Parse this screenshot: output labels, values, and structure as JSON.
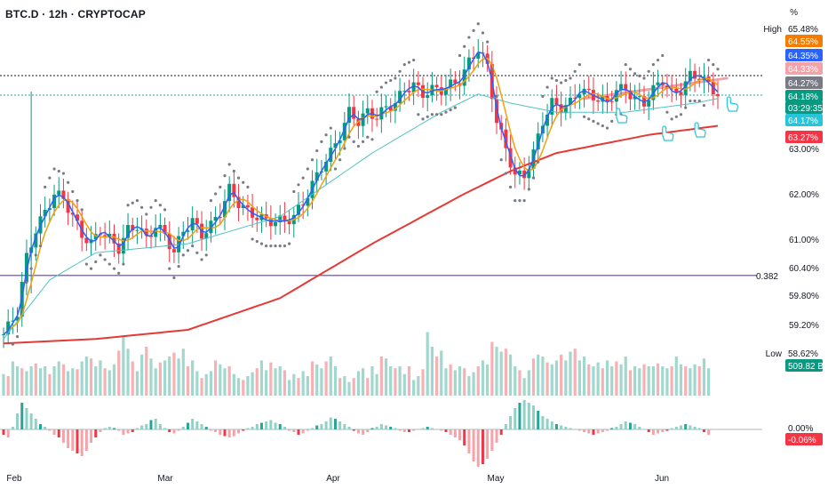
{
  "header": {
    "title": "BTC.D · 12h · CRYPTOCAP",
    "percent_label": "%"
  },
  "chart_data": {
    "type": "candlestick",
    "symbol": "BTC.D",
    "interval": "12h",
    "exchange": "CRYPTOCAP",
    "y_axis_ticks": [
      "63.00%",
      "62.00%",
      "61.00%",
      "60.40%",
      "59.80%",
      "59.20%",
      "0.00%"
    ],
    "x_axis_labels": [
      "Feb",
      "Mar",
      "Apr",
      "May",
      "Jun"
    ],
    "fib_level_label": "0.382",
    "fib_level_value": 60.2,
    "price_badges": [
      {
        "label": "High",
        "value": "65.48%",
        "color": "#ffffff"
      },
      {
        "value": "64.55%",
        "color": "#f57c00"
      },
      {
        "value": "64.35%",
        "color": "#2962ff"
      },
      {
        "value": "64.33%",
        "color": "#f4a1a8"
      },
      {
        "value": "64.27%",
        "color": "#787b86"
      },
      {
        "value": "64.18%",
        "color": "#089981"
      },
      {
        "value": "03:29:35",
        "color": "#089981"
      },
      {
        "value": "64.17%",
        "color": "#26c6da"
      },
      {
        "value": "63.27%",
        "color": "#f23645"
      },
      {
        "label": "Low",
        "value": "58.62%",
        "color": "#ffffff"
      },
      {
        "value": "509.82 B",
        "color": "#089981"
      },
      {
        "value": "0.00%",
        "color": "#ffffff"
      },
      {
        "value": "-0.06%",
        "color": "#f23645"
      }
    ],
    "price_path": [
      [
        0,
        58.9
      ],
      [
        3,
        59.4
      ],
      [
        5,
        60.6
      ],
      [
        7,
        61.2
      ],
      [
        9,
        61.6
      ],
      [
        11,
        62.0
      ],
      [
        13,
        61.9
      ],
      [
        15,
        61.5
      ],
      [
        17,
        61.1
      ],
      [
        19,
        60.9
      ],
      [
        21,
        61.2
      ],
      [
        23,
        61.0
      ],
      [
        25,
        60.8
      ],
      [
        27,
        61.2
      ],
      [
        29,
        61.3
      ],
      [
        31,
        61.0
      ],
      [
        33,
        61.3
      ],
      [
        35,
        61.1
      ],
      [
        37,
        60.7
      ],
      [
        39,
        61.2
      ],
      [
        41,
        61.4
      ],
      [
        43,
        61.1
      ],
      [
        45,
        61.3
      ],
      [
        47,
        61.6
      ],
      [
        49,
        62.1
      ],
      [
        51,
        61.8
      ],
      [
        53,
        61.6
      ],
      [
        55,
        61.5
      ],
      [
        57,
        61.4
      ],
      [
        59,
        61.4
      ],
      [
        61,
        61.4
      ],
      [
        63,
        61.5
      ],
      [
        65,
        61.8
      ],
      [
        67,
        62.2
      ],
      [
        69,
        62.6
      ],
      [
        71,
        62.9
      ],
      [
        73,
        63.3
      ],
      [
        75,
        63.8
      ],
      [
        77,
        63.6
      ],
      [
        79,
        63.8
      ],
      [
        81,
        63.7
      ],
      [
        83,
        63.9
      ],
      [
        85,
        64.0
      ],
      [
        87,
        64.3
      ],
      [
        89,
        64.4
      ],
      [
        91,
        64.2
      ],
      [
        93,
        64.3
      ],
      [
        95,
        64.3
      ],
      [
        97,
        64.4
      ],
      [
        99,
        64.5
      ],
      [
        101,
        64.9
      ],
      [
        103,
        65.2
      ],
      [
        105,
        64.8
      ],
      [
        107,
        63.6
      ],
      [
        109,
        63.0
      ],
      [
        111,
        62.4
      ],
      [
        113,
        62.4
      ],
      [
        115,
        62.9
      ],
      [
        117,
        63.6
      ],
      [
        119,
        64.0
      ],
      [
        121,
        63.9
      ],
      [
        123,
        64.0
      ],
      [
        125,
        64.3
      ],
      [
        127,
        64.2
      ],
      [
        129,
        64.1
      ],
      [
        131,
        64.0
      ],
      [
        133,
        64.3
      ],
      [
        135,
        64.3
      ],
      [
        137,
        64.1
      ],
      [
        139,
        64.0
      ],
      [
        141,
        64.3
      ],
      [
        143,
        64.5
      ],
      [
        145,
        64.2
      ],
      [
        147,
        64.3
      ],
      [
        149,
        64.6
      ],
      [
        151,
        64.6
      ],
      [
        153,
        64.4
      ],
      [
        155,
        64.2
      ]
    ],
    "ema_long_path": [
      [
        0,
        58.7
      ],
      [
        20,
        58.8
      ],
      [
        40,
        59.0
      ],
      [
        60,
        59.7
      ],
      [
        80,
        60.9
      ],
      [
        100,
        62.0
      ],
      [
        110,
        62.5
      ],
      [
        120,
        62.9
      ],
      [
        140,
        63.3
      ],
      [
        155,
        63.5
      ]
    ],
    "sma_path": [
      [
        0,
        58.8
      ],
      [
        10,
        60.1
      ],
      [
        20,
        60.7
      ],
      [
        40,
        60.9
      ],
      [
        60,
        61.5
      ],
      [
        70,
        62.2
      ],
      [
        80,
        62.9
      ],
      [
        95,
        63.8
      ],
      [
        103,
        64.2
      ],
      [
        110,
        64.0
      ],
      [
        120,
        63.8
      ],
      [
        135,
        63.8
      ],
      [
        150,
        64.0
      ],
      [
        155,
        64.1
      ]
    ],
    "trendline": {
      "from": [
        126,
        64.1
      ],
      "to": [
        157,
        64.55
      ],
      "color": "#f4a1a8"
    },
    "volume": [
      0.22,
      0.2,
      0.35,
      0.3,
      0.28,
      0.25,
      0.3,
      0.33,
      0.28,
      0.3,
      0.22,
      0.3,
      0.35,
      0.32,
      0.25,
      0.28,
      0.27,
      0.35,
      0.4,
      0.38,
      0.3,
      0.36,
      0.28,
      0.26,
      0.32,
      0.46,
      0.6,
      0.48,
      0.35,
      0.25,
      0.42,
      0.5,
      0.38,
      0.28,
      0.34,
      0.36,
      0.4,
      0.44,
      0.38,
      0.48,
      0.3,
      0.36,
      0.25,
      0.18,
      0.22,
      0.25,
      0.36,
      0.32,
      0.28,
      0.3,
      0.22,
      0.18,
      0.16,
      0.2,
      0.24,
      0.28,
      0.36,
      0.26,
      0.34,
      0.28,
      0.3,
      0.26,
      0.16,
      0.22,
      0.18,
      0.25,
      0.2,
      0.35,
      0.32,
      0.28,
      0.35,
      0.4,
      0.3,
      0.18,
      0.2,
      0.14,
      0.18,
      0.25,
      0.28,
      0.18,
      0.3,
      0.22,
      0.4,
      0.38,
      0.3,
      0.28,
      0.3,
      0.22,
      0.3,
      0.16,
      0.2,
      0.27,
      0.65,
      0.5,
      0.4,
      0.46,
      0.28,
      0.32,
      0.26,
      0.3,
      0.28,
      0.2,
      0.24,
      0.3,
      0.36,
      0.32,
      0.55,
      0.5,
      0.45,
      0.48,
      0.42,
      0.3,
      0.26,
      0.18,
      0.26,
      0.38,
      0.42,
      0.4,
      0.34,
      0.32,
      0.36,
      0.42,
      0.36,
      0.45,
      0.48,
      0.36,
      0.4,
      0.32,
      0.3,
      0.34,
      0.28,
      0.36,
      0.3,
      0.35,
      0.32,
      0.4,
      0.26,
      0.3,
      0.28,
      0.32,
      0.3,
      0.3,
      0.33,
      0.3,
      0.28,
      0.3,
      0.4,
      0.32,
      0.3,
      0.28,
      0.32,
      0.3,
      0.38,
      0.28
    ],
    "oscillator": [
      -0.2,
      -0.3,
      0.1,
      0.6,
      1.0,
      0.8,
      0.6,
      0.4,
      0.2,
      0.1,
      -0.05,
      -0.2,
      -0.3,
      -0.5,
      -0.7,
      -0.8,
      -0.9,
      -1.0,
      -0.8,
      -0.5,
      -0.3,
      -0.1,
      0.05,
      0.1,
      0.05,
      -0.05,
      -0.2,
      -0.15,
      -0.1,
      0.05,
      0.15,
      0.2,
      0.35,
      0.4,
      0.2,
      0.05,
      -0.1,
      -0.15,
      -0.05,
      0.1,
      0.25,
      0.4,
      0.3,
      0.2,
      0.1,
      -0.05,
      -0.1,
      -0.2,
      -0.25,
      -0.3,
      -0.25,
      -0.15,
      -0.05,
      0.05,
      0.1,
      0.2,
      0.25,
      0.3,
      0.35,
      0.25,
      0.2,
      0.1,
      -0.05,
      -0.1,
      -0.2,
      -0.15,
      -0.05,
      0.05,
      0.15,
      0.2,
      0.3,
      0.45,
      0.4,
      0.3,
      0.2,
      0.1,
      -0.05,
      -0.15,
      -0.2,
      -0.1,
      0.05,
      0.1,
      0.2,
      0.15,
      0.1,
      0.05,
      -0.05,
      -0.1,
      -0.1,
      -0.05,
      0.0,
      0.05,
      0.1,
      0.05,
      0.0,
      -0.05,
      -0.1,
      -0.2,
      -0.3,
      -0.4,
      -0.6,
      -0.9,
      -1.2,
      -1.4,
      -1.3,
      -1.1,
      -0.8,
      -0.5,
      -0.2,
      0.2,
      0.5,
      0.8,
      1.0,
      1.1,
      1.0,
      0.9,
      0.7,
      0.5,
      0.4,
      0.3,
      0.2,
      0.15,
      0.1,
      0.05,
      0.0,
      -0.05,
      -0.1,
      -0.15,
      -0.2,
      -0.15,
      -0.1,
      -0.05,
      0.05,
      0.1,
      0.2,
      0.3,
      0.25,
      0.2,
      0.1,
      0.0,
      -0.1,
      -0.2,
      -0.15,
      -0.1,
      -0.05,
      0.05,
      0.1,
      0.15,
      0.2,
      0.15,
      0.1,
      0.05,
      -0.1,
      -0.2
    ]
  }
}
